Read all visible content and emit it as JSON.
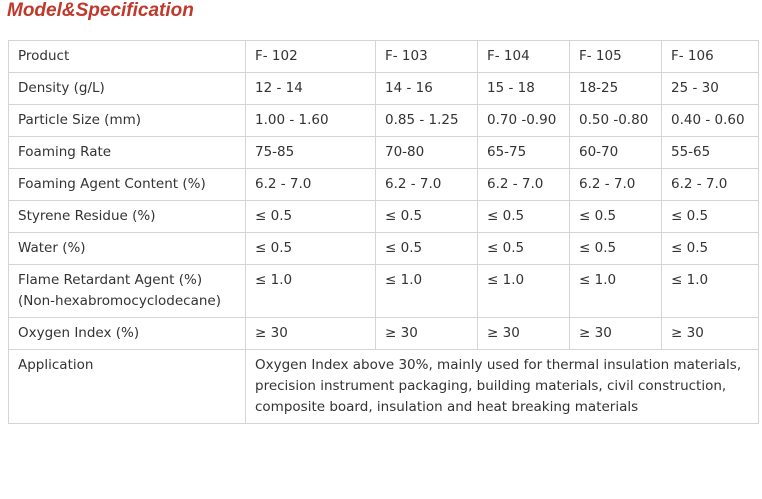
{
  "title": "Model&Specification",
  "table": {
    "header": [
      "Product",
      "F- 102",
      "F- 103",
      "F- 104",
      "F- 105",
      "F- 106"
    ],
    "rows": [
      [
        "Density (g/L)",
        "12 - 14",
        "14 - 16",
        "15 - 18",
        "18-25",
        "25 - 30"
      ],
      [
        "Particle Size (mm)",
        "1.00 - 1.60",
        "0.85 - 1.25",
        "0.70 -0.90",
        "0.50 -0.80",
        "0.40 - 0.60"
      ],
      [
        "Foaming Rate",
        "75-85",
        "70-80",
        "65-75",
        "60-70",
        "55-65"
      ],
      [
        "Foaming Agent Content (%)",
        "6.2 - 7.0",
        "6.2 - 7.0",
        "6.2 - 7.0",
        "6.2 - 7.0",
        "6.2 - 7.0"
      ],
      [
        "Styrene Residue (%)",
        "≤ 0.5",
        "≤ 0.5",
        "≤ 0.5",
        "≤ 0.5",
        "≤ 0.5"
      ],
      [
        "Water (%)",
        "≤ 0.5",
        "≤ 0.5",
        "≤ 0.5",
        "≤ 0.5",
        "≤ 0.5"
      ],
      [
        "Flame Retardant Agent (%) (Non-hexabromocyclodecane)",
        "≤ 1.0",
        "≤ 1.0",
        "≤ 1.0",
        "≤ 1.0",
        "≤ 1.0"
      ],
      [
        "Oxygen Index (%)",
        "≥ 30",
        "≥ 30",
        "≥ 30",
        "≥ 30",
        "≥ 30"
      ]
    ],
    "application": {
      "label": "Application",
      "text": "Oxygen Index above 30%, mainly used for thermal insulation materials, precision instrument packaging, building materials, civil construction, composite board, insulation and heat breaking materials"
    }
  }
}
